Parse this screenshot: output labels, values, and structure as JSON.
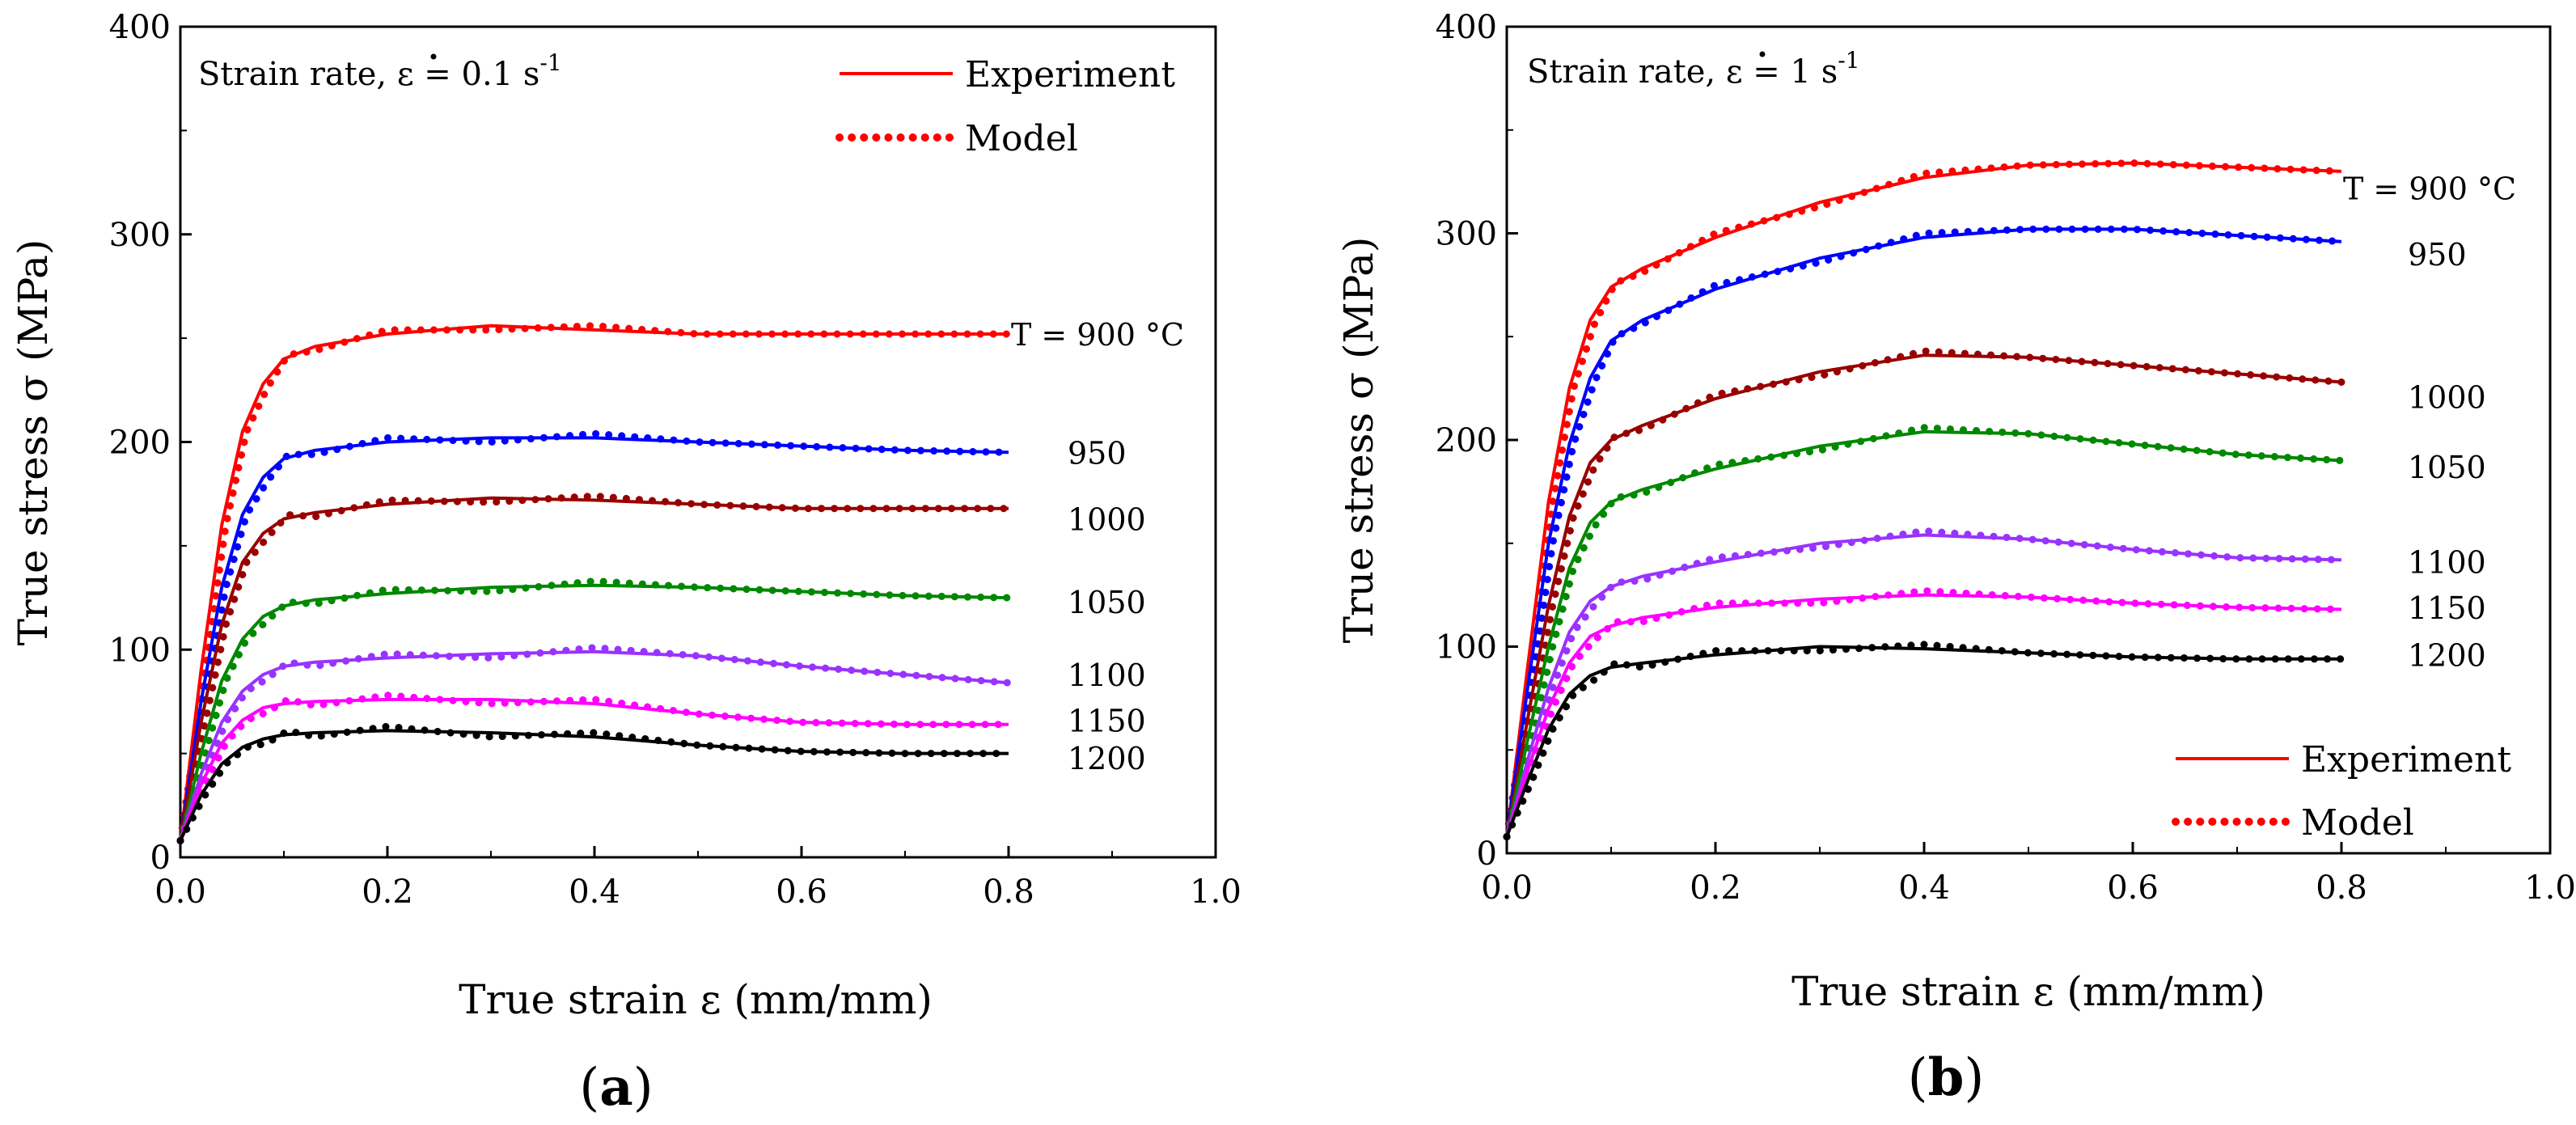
{
  "chart_data": [
    {
      "type": "line",
      "panel": "(a)",
      "panel_open": "(",
      "panel_letter": "a",
      "panel_close": ")",
      "title": "",
      "xlabel": "True strain ε (mm/mm)",
      "ylabel": "True stress σ (MPa)",
      "xlim": [
        0.0,
        1.0
      ],
      "ylim": [
        0,
        400
      ],
      "xticks": [
        "0.0",
        "0.2",
        "0.4",
        "0.6",
        "0.8",
        "1.0"
      ],
      "yticks": [
        "0",
        "100",
        "200",
        "300",
        "400"
      ],
      "grid": false,
      "note": {
        "prefix": "Strain rate, ",
        "symbol": "ε",
        "value": " = 0.1 s",
        "exp": "-1"
      },
      "legend": {
        "position": "top-right",
        "entries": [
          {
            "label": "Experiment",
            "style": "solid"
          },
          {
            "label": "Model",
            "style": "dotted"
          }
        ]
      },
      "series": [
        {
          "label": "T = 900 °C",
          "color": "#ff0000",
          "points": [
            [
              0,
              8
            ],
            [
              0.02,
              90
            ],
            [
              0.04,
              160
            ],
            [
              0.06,
              205
            ],
            [
              0.08,
              228
            ],
            [
              0.1,
              240
            ],
            [
              0.13,
              246
            ],
            [
              0.2,
              252
            ],
            [
              0.3,
              256
            ],
            [
              0.4,
              254
            ],
            [
              0.5,
              252
            ],
            [
              0.6,
              252
            ],
            [
              0.7,
              252
            ],
            [
              0.8,
              252
            ]
          ]
        },
        {
          "label": "950",
          "color": "#0000ff",
          "points": [
            [
              0,
              8
            ],
            [
              0.02,
              75
            ],
            [
              0.04,
              130
            ],
            [
              0.06,
              165
            ],
            [
              0.08,
              183
            ],
            [
              0.1,
              192
            ],
            [
              0.13,
              196
            ],
            [
              0.2,
              200
            ],
            [
              0.3,
              202
            ],
            [
              0.4,
              202
            ],
            [
              0.5,
              200
            ],
            [
              0.6,
              198
            ],
            [
              0.7,
              196
            ],
            [
              0.8,
              195
            ]
          ]
        },
        {
          "label": "1000",
          "color": "#990000",
          "points": [
            [
              0,
              8
            ],
            [
              0.02,
              65
            ],
            [
              0.04,
              112
            ],
            [
              0.06,
              142
            ],
            [
              0.08,
              156
            ],
            [
              0.1,
              163
            ],
            [
              0.13,
              166
            ],
            [
              0.2,
              170
            ],
            [
              0.3,
              173
            ],
            [
              0.4,
              172
            ],
            [
              0.5,
              170
            ],
            [
              0.6,
              168
            ],
            [
              0.7,
              168
            ],
            [
              0.8,
              168
            ]
          ]
        },
        {
          "label": "1050",
          "color": "#008800",
          "points": [
            [
              0,
              8
            ],
            [
              0.02,
              50
            ],
            [
              0.04,
              85
            ],
            [
              0.06,
              105
            ],
            [
              0.08,
              116
            ],
            [
              0.1,
              121
            ],
            [
              0.13,
              124
            ],
            [
              0.2,
              127
            ],
            [
              0.3,
              130
            ],
            [
              0.4,
              131
            ],
            [
              0.5,
              130
            ],
            [
              0.6,
              128
            ],
            [
              0.7,
              126
            ],
            [
              0.8,
              125
            ]
          ]
        },
        {
          "label": "1100",
          "color": "#9933ff",
          "points": [
            [
              0,
              8
            ],
            [
              0.02,
              40
            ],
            [
              0.04,
              65
            ],
            [
              0.06,
              80
            ],
            [
              0.08,
              88
            ],
            [
              0.1,
              92
            ],
            [
              0.13,
              94
            ],
            [
              0.2,
              96
            ],
            [
              0.3,
              98
            ],
            [
              0.4,
              99
            ],
            [
              0.5,
              97
            ],
            [
              0.6,
              92
            ],
            [
              0.7,
              88
            ],
            [
              0.8,
              84
            ]
          ]
        },
        {
          "label": "1150",
          "color": "#ff00ff",
          "points": [
            [
              0,
              8
            ],
            [
              0.02,
              35
            ],
            [
              0.04,
              55
            ],
            [
              0.06,
              66
            ],
            [
              0.08,
              72
            ],
            [
              0.1,
              74
            ],
            [
              0.13,
              75
            ],
            [
              0.2,
              76
            ],
            [
              0.3,
              76
            ],
            [
              0.4,
              74
            ],
            [
              0.5,
              69
            ],
            [
              0.6,
              65
            ],
            [
              0.7,
              64
            ],
            [
              0.8,
              64
            ]
          ]
        },
        {
          "label": "1200",
          "color": "#000000",
          "points": [
            [
              0,
              8
            ],
            [
              0.02,
              30
            ],
            [
              0.04,
              45
            ],
            [
              0.06,
              53
            ],
            [
              0.08,
              57
            ],
            [
              0.1,
              59
            ],
            [
              0.13,
              60
            ],
            [
              0.2,
              61
            ],
            [
              0.3,
              60
            ],
            [
              0.4,
              58
            ],
            [
              0.5,
              54
            ],
            [
              0.6,
              51
            ],
            [
              0.7,
              50
            ],
            [
              0.8,
              50
            ]
          ]
        }
      ]
    },
    {
      "type": "line",
      "panel": "(b)",
      "panel_open": "(",
      "panel_letter": "b",
      "panel_close": ")",
      "title": "",
      "xlabel": "True strain ε (mm/mm)",
      "ylabel": "True stress σ (MPa)",
      "xlim": [
        0.0,
        1.0
      ],
      "ylim": [
        0,
        400
      ],
      "xticks": [
        "0.0",
        "0.2",
        "0.4",
        "0.6",
        "0.8",
        "1.0"
      ],
      "yticks": [
        "0",
        "100",
        "200",
        "300",
        "400"
      ],
      "grid": false,
      "note": {
        "prefix": "Strain rate, ",
        "symbol": "ε",
        "value": " = 1 s",
        "exp": "-1"
      },
      "legend": {
        "position": "bottom-right",
        "entries": [
          {
            "label": "Experiment",
            "style": "solid"
          },
          {
            "label": "Model",
            "style": "dotted"
          }
        ]
      },
      "series": [
        {
          "label": "T = 900 °C",
          "color": "#ff0000",
          "points": [
            [
              0,
              8
            ],
            [
              0.02,
              90
            ],
            [
              0.04,
              170
            ],
            [
              0.06,
              225
            ],
            [
              0.08,
              258
            ],
            [
              0.1,
              274
            ],
            [
              0.13,
              283
            ],
            [
              0.2,
              298
            ],
            [
              0.3,
              315
            ],
            [
              0.4,
              327
            ],
            [
              0.5,
              333
            ],
            [
              0.6,
              334
            ],
            [
              0.7,
              332
            ],
            [
              0.8,
              330
            ]
          ]
        },
        {
          "label": "950",
          "color": "#0000ff",
          "points": [
            [
              0,
              8
            ],
            [
              0.02,
              80
            ],
            [
              0.04,
              150
            ],
            [
              0.06,
              198
            ],
            [
              0.08,
              230
            ],
            [
              0.1,
              248
            ],
            [
              0.13,
              258
            ],
            [
              0.2,
              273
            ],
            [
              0.3,
              288
            ],
            [
              0.4,
              298
            ],
            [
              0.5,
              302
            ],
            [
              0.6,
              302
            ],
            [
              0.7,
              299
            ],
            [
              0.8,
              296
            ]
          ]
        },
        {
          "label": "1000",
          "color": "#990000",
          "points": [
            [
              0,
              8
            ],
            [
              0.02,
              65
            ],
            [
              0.04,
              120
            ],
            [
              0.06,
              163
            ],
            [
              0.08,
              189
            ],
            [
              0.1,
              200
            ],
            [
              0.13,
              207
            ],
            [
              0.2,
              220
            ],
            [
              0.3,
              233
            ],
            [
              0.4,
              241
            ],
            [
              0.5,
              240
            ],
            [
              0.6,
              236
            ],
            [
              0.7,
              232
            ],
            [
              0.8,
              228
            ]
          ]
        },
        {
          "label": "1050",
          "color": "#008800",
          "points": [
            [
              0,
              8
            ],
            [
              0.02,
              55
            ],
            [
              0.04,
              100
            ],
            [
              0.06,
              138
            ],
            [
              0.08,
              160
            ],
            [
              0.1,
              170
            ],
            [
              0.13,
              176
            ],
            [
              0.2,
              186
            ],
            [
              0.3,
              197
            ],
            [
              0.4,
              204
            ],
            [
              0.5,
              203
            ],
            [
              0.6,
              198
            ],
            [
              0.7,
              193
            ],
            [
              0.8,
              190
            ]
          ]
        },
        {
          "label": "1100",
          "color": "#9933ff",
          "points": [
            [
              0,
              8
            ],
            [
              0.02,
              45
            ],
            [
              0.04,
              80
            ],
            [
              0.06,
              107
            ],
            [
              0.08,
              122
            ],
            [
              0.1,
              129
            ],
            [
              0.13,
              134
            ],
            [
              0.2,
              141
            ],
            [
              0.3,
              150
            ],
            [
              0.4,
              154
            ],
            [
              0.5,
              152
            ],
            [
              0.6,
              147
            ],
            [
              0.7,
              143
            ],
            [
              0.8,
              142
            ]
          ]
        },
        {
          "label": "1150",
          "color": "#ff00ff",
          "points": [
            [
              0,
              8
            ],
            [
              0.02,
              40
            ],
            [
              0.04,
              70
            ],
            [
              0.06,
              92
            ],
            [
              0.08,
              105
            ],
            [
              0.1,
              110
            ],
            [
              0.13,
              114
            ],
            [
              0.2,
              119
            ],
            [
              0.3,
              123
            ],
            [
              0.4,
              125
            ],
            [
              0.5,
              124
            ],
            [
              0.6,
              121
            ],
            [
              0.7,
              119
            ],
            [
              0.8,
              118
            ]
          ]
        },
        {
          "label": "1200",
          "color": "#000000",
          "points": [
            [
              0,
              8
            ],
            [
              0.02,
              35
            ],
            [
              0.04,
              60
            ],
            [
              0.06,
              77
            ],
            [
              0.08,
              86
            ],
            [
              0.1,
              90
            ],
            [
              0.13,
              92
            ],
            [
              0.2,
              96
            ],
            [
              0.3,
              100
            ],
            [
              0.4,
              99
            ],
            [
              0.5,
              97
            ],
            [
              0.6,
              95
            ],
            [
              0.7,
              94
            ],
            [
              0.8,
              94
            ]
          ]
        }
      ]
    }
  ]
}
